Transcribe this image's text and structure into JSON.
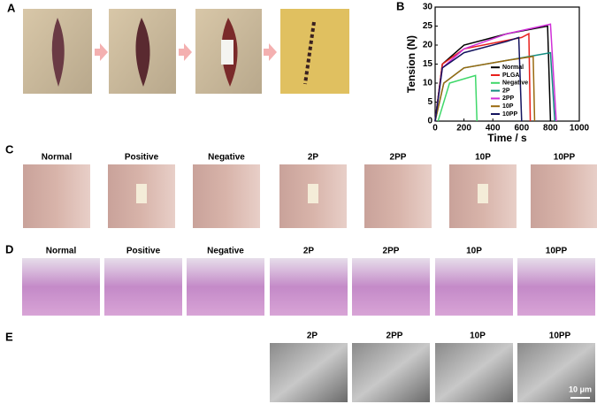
{
  "panel_labels": [
    "A",
    "B",
    "C",
    "D",
    "E"
  ],
  "panel_c": {
    "labels": [
      "Normal",
      "Positive",
      "Negative",
      "2P",
      "2PP",
      "10P",
      "10PP"
    ]
  },
  "panel_d": {
    "labels": [
      "Normal",
      "Positive",
      "Negative",
      "2P",
      "2PP",
      "10P",
      "10PP"
    ]
  },
  "panel_e": {
    "labels": [
      "2P",
      "2PP",
      "10P",
      "10PP"
    ],
    "scale_bar": "10 μm"
  },
  "chart_data": {
    "type": "line",
    "xlabel": "Time / s",
    "ylabel": "Tension (N)",
    "xlim": [
      0,
      1000
    ],
    "xticks": [
      0,
      200,
      400,
      600,
      800,
      1000
    ],
    "ylim": [
      0,
      30
    ],
    "yticks": [
      0,
      5,
      10,
      15,
      20,
      25,
      30
    ],
    "legend": "lower right",
    "series": [
      {
        "name": "Normal",
        "color": "#000000",
        "x": [
          0,
          50,
          200,
          500,
          780,
          800
        ],
        "values": [
          0,
          15,
          20,
          23,
          25,
          0
        ]
      },
      {
        "name": "PLGA",
        "color": "#e8201c",
        "x": [
          0,
          50,
          200,
          600,
          650,
          660
        ],
        "values": [
          0,
          15,
          19,
          22,
          23,
          0
        ]
      },
      {
        "name": "Negative",
        "color": "#3fd86a",
        "x": [
          20,
          100,
          280,
          290
        ],
        "values": [
          0,
          10,
          12,
          0
        ]
      },
      {
        "name": "2P",
        "color": "#138c80",
        "x": [
          0,
          60,
          200,
          500,
          800,
          830
        ],
        "values": [
          0,
          10,
          14,
          16,
          18,
          0
        ]
      },
      {
        "name": "2PP",
        "color": "#d030d8",
        "x": [
          0,
          50,
          200,
          500,
          800,
          840
        ],
        "values": [
          0,
          14,
          19,
          23,
          25.5,
          0
        ]
      },
      {
        "name": "10P",
        "color": "#9a6a10",
        "x": [
          0,
          60,
          200,
          500,
          680,
          690
        ],
        "values": [
          0,
          10,
          14,
          16,
          17,
          0
        ]
      },
      {
        "name": "10PP",
        "color": "#13135e",
        "x": [
          0,
          50,
          200,
          500,
          580,
          600
        ],
        "values": [
          0,
          14,
          18,
          21,
          22,
          0
        ]
      }
    ]
  }
}
